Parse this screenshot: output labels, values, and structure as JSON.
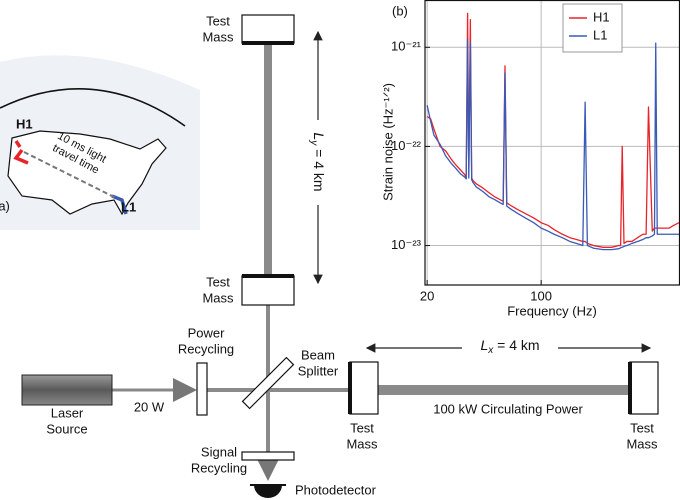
{
  "panel_a": {
    "label": "(a)",
    "sites": [
      "H1",
      "L1"
    ],
    "annotation": [
      "10 ms light",
      "travel time"
    ]
  },
  "diagram": {
    "test_mass_vertical_end": [
      "Test",
      "Mass"
    ],
    "test_mass_vertical_input": [
      "Test",
      "Mass"
    ],
    "arm_y": {
      "symbol": "L",
      "subscript": "y",
      "text": " = 4 km"
    },
    "beam_splitter": [
      "Beam",
      "Splitter"
    ],
    "power_recycling": [
      "Power",
      "Recycling"
    ],
    "laser_source": [
      "Laser",
      "Source"
    ],
    "laser_power": "20 W",
    "arm_x": {
      "symbol": "L",
      "subscript": "x",
      "text": " = 4 km"
    },
    "test_mass_horizontal_input": [
      "Test",
      "Mass"
    ],
    "test_mass_horizontal_end": [
      "Test",
      "Mass"
    ],
    "circulating_power": "100 kW Circulating Power",
    "signal_recycling": [
      "Signal",
      "Recycling"
    ],
    "photodetector": "Photodetector"
  },
  "chart_data": {
    "type": "line",
    "panel_label": "(b)",
    "xlabel": "Frequency (Hz)",
    "ylabel": "Strain noise (Hz⁻¹ᐟ²)",
    "log_x": true,
    "log_y": true,
    "grid": true,
    "legend": "upper right",
    "xlim": [
      19.4,
      710
    ],
    "ylim": [
      4e-24,
      3e-21
    ],
    "xticks": [
      20,
      100
    ],
    "yticks": [
      {
        "value": 1e-23,
        "label": "10⁻²³"
      },
      {
        "value": 1e-22,
        "label": "10⁻²²"
      },
      {
        "value": 1e-21,
        "label": "10⁻²¹"
      }
    ],
    "x": [
      20,
      21,
      22,
      24,
      26,
      28,
      30,
      32,
      34,
      34.7,
      35.4,
      36,
      36.8,
      37.5,
      38.3,
      40,
      44,
      48,
      52,
      56,
      58.5,
      60,
      61.5,
      66,
      72,
      80,
      90,
      100,
      110,
      120,
      135,
      150,
      165,
      180,
      186,
      192,
      210,
      240,
      270,
      300,
      307,
      314,
      322,
      335,
      360,
      390,
      420,
      440,
      455,
      480,
      495,
      504,
      515,
      560,
      610,
      650,
      700
    ],
    "series": [
      {
        "name": "H1",
        "color": "#e8242b",
        "values": [
          2e-22,
          1.9e-22,
          1.5e-22,
          1e-22,
          9e-23,
          7.5e-23,
          6.5e-23,
          5.8e-23,
          5.2e-23,
          4.8e-23,
          2.2e-21,
          5e-23,
          1.9e-21,
          4.8e-23,
          4.5e-23,
          4.2e-23,
          3.8e-23,
          3.4e-23,
          3.1e-23,
          2.9e-23,
          2.8e-23,
          6.5e-22,
          2.7e-23,
          2.5e-23,
          2.3e-23,
          2.1e-23,
          1.9e-23,
          1.7e-23,
          1.6e-23,
          1.45e-23,
          1.3e-23,
          1.2e-23,
          1.15e-23,
          1.1e-23,
          1.1e-23,
          1.05e-23,
          1e-23,
          9.6e-24,
          9.6e-24,
          1e-23,
          1e-23,
          1e-22,
          1.05e-23,
          1.1e-23,
          1.1e-23,
          1.2e-23,
          1.3e-23,
          1.3e-23,
          2.5e-22,
          1.4e-23,
          1.5e-23,
          1.5e-23,
          1.5e-23,
          1.5e-23,
          1.5e-23,
          1.6e-23,
          1.7e-23
        ]
      },
      {
        "name": "L1",
        "color": "#3a5bb5",
        "values": [
          2.6e-22,
          1.8e-22,
          1.3e-22,
          1.05e-22,
          8e-23,
          6.8e-23,
          6e-23,
          5.3e-23,
          4.9e-23,
          4.7e-23,
          1.2e-21,
          4.8e-23,
          1.1e-21,
          4.6e-23,
          4.3e-23,
          3.9e-23,
          3.5e-23,
          3.1e-23,
          2.9e-23,
          2.7e-23,
          2.6e-23,
          5.5e-22,
          2.5e-23,
          2.3e-23,
          2.1e-23,
          1.9e-23,
          1.7e-23,
          1.5e-23,
          1.4e-23,
          1.3e-23,
          1.2e-23,
          1.1e-23,
          1.05e-23,
          1e-23,
          2.8e-22,
          1e-23,
          9.4e-24,
          9.1e-24,
          9.1e-24,
          9.3e-24,
          9.5e-24,
          9.6e-24,
          9.8e-24,
          1e-23,
          1.05e-23,
          1.1e-23,
          1.15e-23,
          1.2e-23,
          1.2e-23,
          1.25e-23,
          1.3e-23,
          1.1e-21,
          1.3e-23,
          1.3e-23,
          1.3e-23,
          1.3e-23,
          1.3e-23
        ]
      }
    ]
  }
}
